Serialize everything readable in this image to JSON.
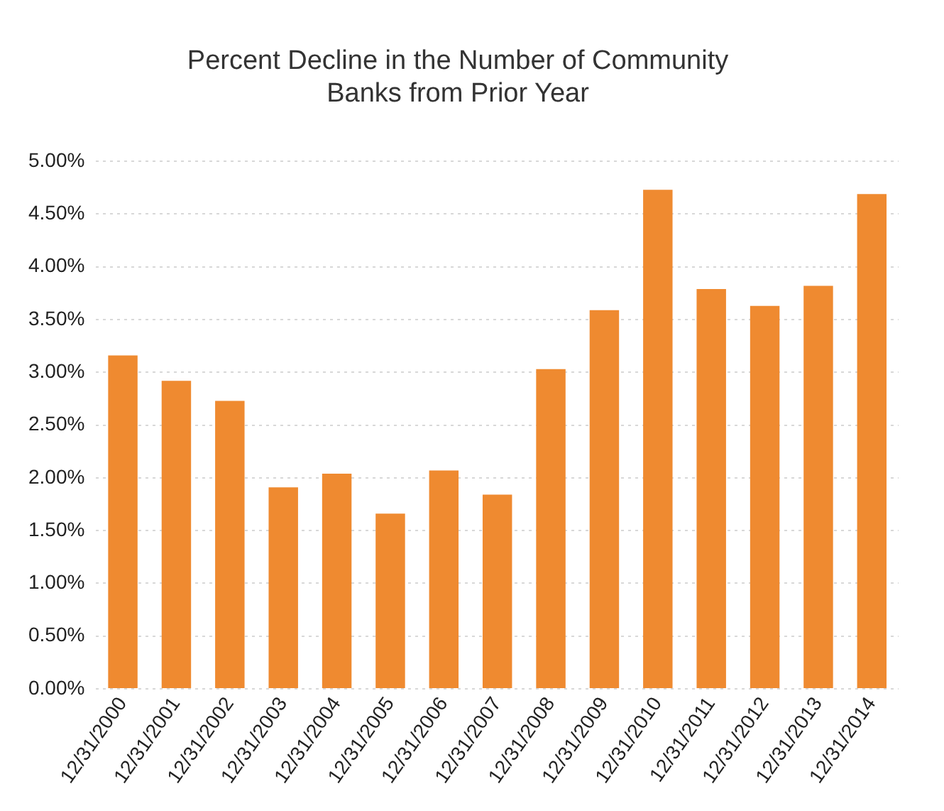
{
  "chart_data": {
    "type": "bar",
    "title": [
      "Percent Decline in the Number of Community",
      "Banks from Prior Year"
    ],
    "categories": [
      "12/31/2000",
      "12/31/2001",
      "12/31/2002",
      "12/31/2003",
      "12/31/2004",
      "12/31/2005",
      "12/31/2006",
      "12/31/2007",
      "12/31/2008",
      "12/31/2009",
      "12/31/2010",
      "12/31/2011",
      "12/31/2012",
      "12/31/2013",
      "12/31/2014"
    ],
    "values": [
      3.16,
      2.92,
      2.73,
      1.91,
      2.04,
      1.66,
      2.07,
      1.84,
      3.03,
      3.59,
      4.73,
      3.79,
      3.63,
      3.82,
      4.69
    ],
    "color": "#ef8a30",
    "ylim": [
      0,
      5
    ],
    "yticks": [
      {
        "value": 0,
        "label": "0.00%"
      },
      {
        "value": 0.5,
        "label": "0.50%"
      },
      {
        "value": 1,
        "label": "1.00%"
      },
      {
        "value": 1.5,
        "label": "1.50%"
      },
      {
        "value": 2,
        "label": "2.00%"
      },
      {
        "value": 2.5,
        "label": "2.50%"
      },
      {
        "value": 3,
        "label": "3.00%"
      },
      {
        "value": 3.5,
        "label": "3.50%"
      },
      {
        "value": 4,
        "label": "4.00%"
      },
      {
        "value": 4.5,
        "label": "4.50%"
      },
      {
        "value": 5,
        "label": "5.00%"
      }
    ],
    "grid": "y"
  }
}
